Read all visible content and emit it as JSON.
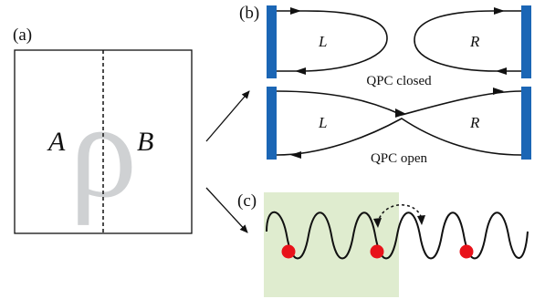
{
  "panels": {
    "a": {
      "label": "(a)",
      "rho_symbol": "ρ",
      "region_left": "A",
      "region_right": "B"
    },
    "b": {
      "label": "(b)",
      "top": {
        "left": "L",
        "right": "R",
        "caption": "QPC closed"
      },
      "bottom": {
        "left": "L",
        "right": "R",
        "caption": "QPC open"
      }
    },
    "c": {
      "label": "(c)",
      "dot_count": 3
    }
  },
  "colors": {
    "lead": "#1b66b5",
    "highlight": "#dfeccf",
    "particle": "#e8121a",
    "rho": "#cfd1d3",
    "line": "#111111"
  }
}
